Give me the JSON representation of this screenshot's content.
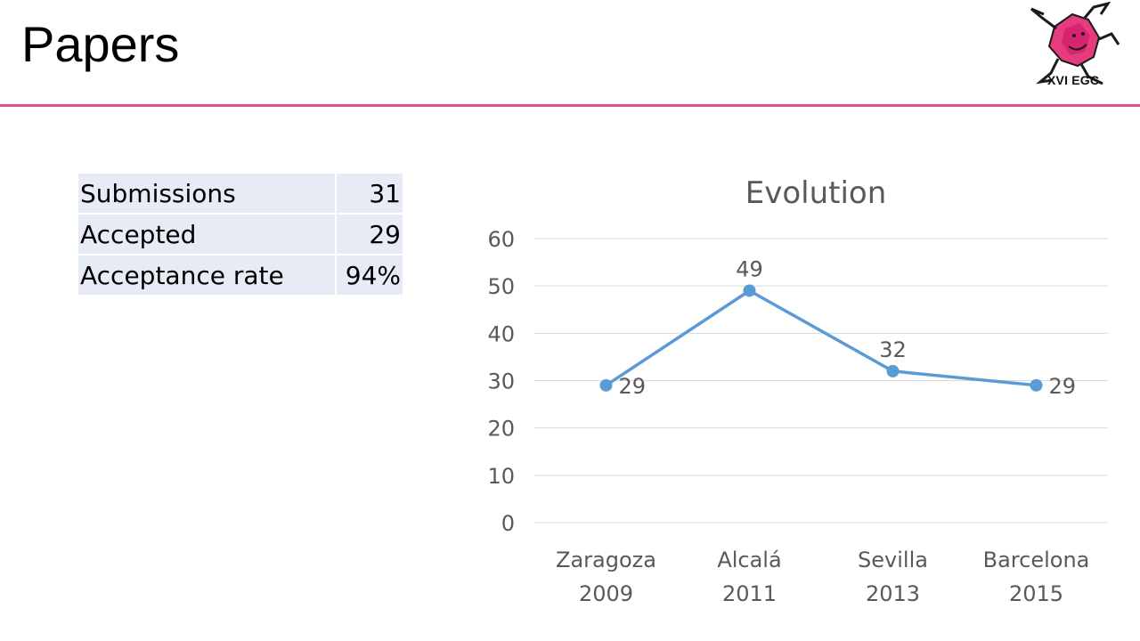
{
  "page": {
    "title": "Papers"
  },
  "logo": {
    "text": "XVI EGC",
    "colors": {
      "pink": "#e63c7e",
      "magenta": "#d01c6b",
      "outline": "#1a1a1a"
    }
  },
  "stats_table": {
    "rows": [
      {
        "label": "Submissions",
        "value": "31"
      },
      {
        "label": "Accepted",
        "value": "29"
      },
      {
        "label": "Acceptance rate",
        "value": "94%"
      }
    ]
  },
  "chart_data": {
    "type": "line",
    "title": "Evolution",
    "categories": [
      [
        "Zaragoza",
        "2009"
      ],
      [
        "Alcalá",
        "2011"
      ],
      [
        "Sevilla",
        "2013"
      ],
      [
        "Barcelona",
        "2015"
      ]
    ],
    "series": [
      {
        "values": [
          29,
          49,
          32,
          29
        ]
      }
    ],
    "ylim": [
      0,
      60
    ],
    "yticks": [
      0,
      10,
      20,
      30,
      40,
      50,
      60
    ],
    "xlabel": "",
    "ylabel": "",
    "grid": true,
    "legend": "none",
    "data_labels": true,
    "colors": {
      "line": "#5b9bd5",
      "grid": "#d9d9d9",
      "text": "#595959"
    }
  },
  "theme": {
    "accent": "#e0508f",
    "table_fill": "#e6ebf5"
  }
}
